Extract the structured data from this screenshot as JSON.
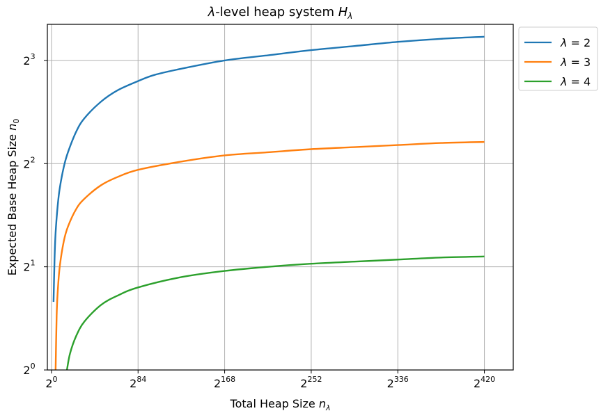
{
  "chart_data": {
    "type": "line",
    "title_parts": [
      "λ",
      "-level heap system ",
      "H",
      "λ"
    ],
    "xlabel_parts": [
      "Total Heap Size ",
      "n",
      "λ"
    ],
    "ylabel_parts": [
      "Expected Base Heap Size ",
      "n",
      "0"
    ],
    "x_scale": "log2",
    "y_scale": "log2",
    "xlim_log2": [
      -4,
      448
    ],
    "ylim_log2": [
      0,
      3.35
    ],
    "x_ticks": [
      {
        "base": "2",
        "exp": "0"
      },
      {
        "base": "2",
        "exp": "84"
      },
      {
        "base": "2",
        "exp": "168"
      },
      {
        "base": "2",
        "exp": "252"
      },
      {
        "base": "2",
        "exp": "336"
      },
      {
        "base": "2",
        "exp": "420"
      }
    ],
    "x_tick_values_log2": [
      0,
      84,
      168,
      252,
      336,
      420
    ],
    "y_ticks": [
      {
        "base": "2",
        "exp": "0"
      },
      {
        "base": "2",
        "exp": "1"
      },
      {
        "base": "2",
        "exp": "2"
      },
      {
        "base": "2",
        "exp": "3"
      }
    ],
    "y_tick_values_log2": [
      0,
      1,
      2,
      3
    ],
    "grid": true,
    "legend_position": "outside-top-right",
    "series": [
      {
        "name_parts": [
          "λ",
          " = 2"
        ],
        "color": "#1f77b4",
        "x_log2": [
          2,
          3,
          4,
          6,
          8,
          12,
          16,
          24,
          32,
          48,
          64,
          84,
          100,
          126,
          168,
          210,
          252,
          294,
          336,
          378,
          420
        ],
        "y_log2": [
          0.66,
          1.08,
          1.33,
          1.59,
          1.76,
          1.97,
          2.11,
          2.31,
          2.44,
          2.6,
          2.71,
          2.8,
          2.86,
          2.92,
          3.0,
          3.05,
          3.1,
          3.14,
          3.18,
          3.21,
          3.23
        ]
      },
      {
        "name_parts": [
          "λ",
          " = 3"
        ],
        "color": "#ff7f0e",
        "x_log2": [
          4,
          5,
          6,
          8,
          12,
          16,
          24,
          32,
          48,
          64,
          84,
          126,
          168,
          210,
          252,
          294,
          336,
          378,
          420
        ],
        "y_log2": [
          0.0,
          0.52,
          0.75,
          1.0,
          1.25,
          1.39,
          1.56,
          1.66,
          1.79,
          1.87,
          1.94,
          2.02,
          2.08,
          2.11,
          2.14,
          2.16,
          2.18,
          2.2,
          2.21
        ]
      },
      {
        "name_parts": [
          "λ",
          " = 4"
        ],
        "color": "#2ca02c",
        "x_log2": [
          15,
          18,
          24,
          32,
          48,
          64,
          84,
          126,
          168,
          210,
          252,
          294,
          336,
          378,
          420
        ],
        "y_log2": [
          0.0,
          0.16,
          0.33,
          0.47,
          0.63,
          0.72,
          0.8,
          0.9,
          0.96,
          1.0,
          1.03,
          1.05,
          1.07,
          1.09,
          1.1
        ]
      }
    ]
  }
}
